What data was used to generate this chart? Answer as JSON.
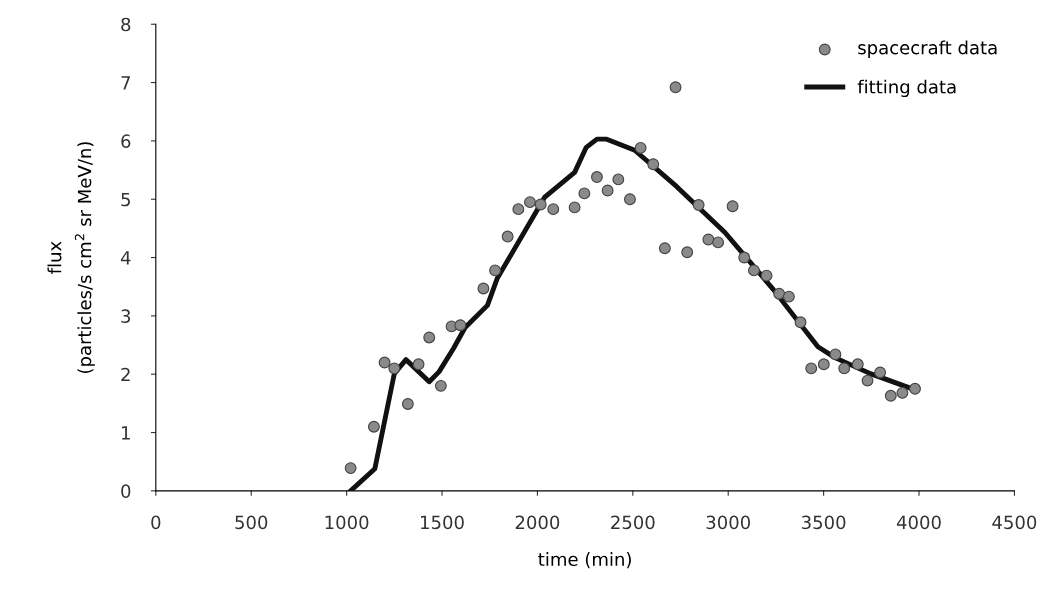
{
  "chart_data": {
    "type": "scatter",
    "xlabel": "time (min)",
    "ylabel": "flux\n(particles/s cm$^{2}$ sr MeV/n)",
    "xlim": [
      0,
      4500
    ],
    "xticks": [
      0,
      500,
      1000,
      1500,
      2000,
      2500,
      3000,
      3500,
      4000,
      4500
    ],
    "ylim": [
      0,
      8
    ],
    "yticks": [
      0,
      1,
      2,
      3,
      4,
      5,
      6,
      7,
      8
    ],
    "grid": false,
    "legend": "top right",
    "series": [
      {
        "name": "spacecraft data",
        "marker": "circle",
        "color": "#8a8a8a",
        "x": [
          1021,
          1143,
          1199,
          1250,
          1321,
          1377,
          1433,
          1494,
          1550,
          1596,
          1717,
          1778,
          1844,
          1900,
          1961,
          2017,
          2083,
          2195,
          2246,
          2312,
          2368,
          2424,
          2485,
          2541,
          2607,
          2668,
          2724,
          2785,
          2845,
          2896,
          2947,
          3023,
          3084,
          3135,
          3201,
          3267,
          3318,
          3379,
          3435,
          3501,
          3562,
          3608,
          3679,
          3730,
          3796,
          3852,
          3913,
          3979
        ],
        "values": [
          0.39,
          1.1,
          2.2,
          2.1,
          1.49,
          2.17,
          2.63,
          1.8,
          2.82,
          2.84,
          3.47,
          3.78,
          4.36,
          4.83,
          4.95,
          4.91,
          4.83,
          4.86,
          5.1,
          5.38,
          5.15,
          5.34,
          5.0,
          5.88,
          5.6,
          4.16,
          6.92,
          4.09,
          4.9,
          4.31,
          4.26,
          4.88,
          4.0,
          3.78,
          3.69,
          3.38,
          3.33,
          2.89,
          2.1,
          2.17,
          2.34,
          2.1,
          2.17,
          1.89,
          2.03,
          1.63,
          1.68,
          1.75
        ]
      },
      {
        "name": "fitting data",
        "type": "line",
        "marker": "none",
        "line_style": "solid",
        "color": "#111111",
        "x": [
          1021,
          1148,
          1250,
          1311,
          1433,
          1484,
          1560,
          1621,
          1738,
          1789,
          2037,
          2195,
          2256,
          2312,
          2363,
          2510,
          2729,
          2983,
          3237,
          3470,
          3562,
          3745,
          3964
        ],
        "values": [
          0,
          0.38,
          2.01,
          2.25,
          1.87,
          2.04,
          2.44,
          2.8,
          3.18,
          3.64,
          5.03,
          5.46,
          5.89,
          6.03,
          6.03,
          5.84,
          5.22,
          4.43,
          3.45,
          2.47,
          2.28,
          2.01,
          1.75
        ]
      }
    ]
  }
}
